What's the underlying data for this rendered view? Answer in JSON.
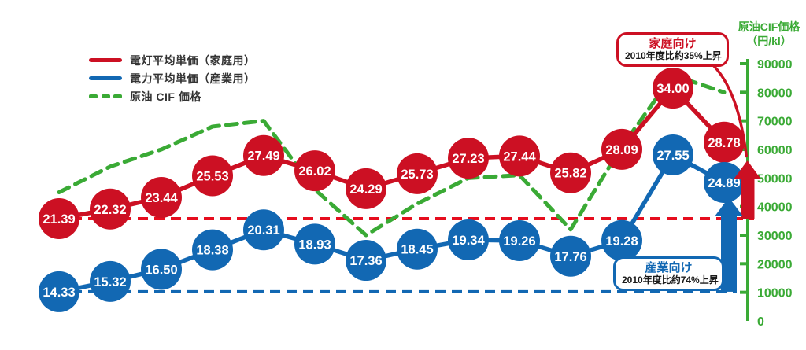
{
  "colors": {
    "household_red": "#cc1023",
    "industrial_blue": "#1268b3",
    "cif_green": "#3aaa35",
    "legend_text": "#333333"
  },
  "legend": {
    "items": [
      {
        "label": "電灯平均単価（家庭用）",
        "color": "#cc1023",
        "style": "solid"
      },
      {
        "label": "電力平均単価（産業用）",
        "color": "#1268b3",
        "style": "solid"
      },
      {
        "label": "原油 CIF 価格",
        "color": "#3aaa35",
        "style": "dashed"
      }
    ]
  },
  "right_axis": {
    "title_line1": "原油CIF価格",
    "title_line2": "（円/kl）",
    "ticks": [
      90000,
      80000,
      70000,
      60000,
      50000,
      40000,
      30000,
      20000,
      10000,
      0
    ],
    "color": "#3aaa35"
  },
  "annotations": {
    "household": {
      "title": "家庭向け",
      "subtitle": "2010年度比約35%上昇"
    },
    "industrial": {
      "title": "産業向け",
      "subtitle": "2010年度比約74%上昇"
    }
  },
  "chart_data": {
    "type": "line",
    "num_points": 14,
    "series": [
      {
        "name": "電灯平均単価（家庭用）",
        "color": "#cc1023",
        "axis": "left",
        "style": "solid-bubbles",
        "values": [
          21.39,
          22.32,
          23.44,
          25.53,
          27.49,
          26.02,
          24.29,
          25.73,
          27.23,
          27.44,
          25.82,
          28.09,
          34.0,
          28.78
        ],
        "labels": [
          "21.39",
          "22.32",
          "23.44",
          "25.53",
          "27.49",
          "26.02",
          "24.29",
          "25.73",
          "27.23",
          "27.44",
          "25.82",
          "28.09",
          "34.00",
          "28.78"
        ]
      },
      {
        "name": "電力平均単価（産業用）",
        "color": "#1268b3",
        "axis": "left",
        "style": "solid-bubbles",
        "values": [
          14.33,
          15.32,
          16.5,
          18.38,
          20.31,
          18.93,
          17.36,
          18.45,
          19.34,
          19.26,
          17.76,
          19.28,
          27.55,
          24.89
        ],
        "labels": [
          "14.33",
          "15.32",
          "16.50",
          "18.38",
          "20.31",
          "18.93",
          "17.36",
          "18.45",
          "19.34",
          "19.26",
          "17.76",
          "19.28",
          "27.55",
          "24.89"
        ]
      },
      {
        "name": "原油 CIF 価格",
        "color": "#3aaa35",
        "axis": "right",
        "style": "dashed",
        "estimated": true,
        "values": [
          45000,
          54000,
          60000,
          68000,
          70000,
          46000,
          30000,
          41000,
          50000,
          51000,
          32000,
          61000,
          86000,
          80000
        ]
      }
    ],
    "baselines": [
      {
        "name": "household-2010-level",
        "value": 21.39,
        "color": "#e60d1e",
        "style": "dashed"
      },
      {
        "name": "industrial-2010-level",
        "value": 14.33,
        "color": "#1268b3",
        "style": "dashed"
      }
    ],
    "right_axis_range": [
      0,
      90000
    ],
    "grid": false,
    "legend_position": "top-left"
  }
}
